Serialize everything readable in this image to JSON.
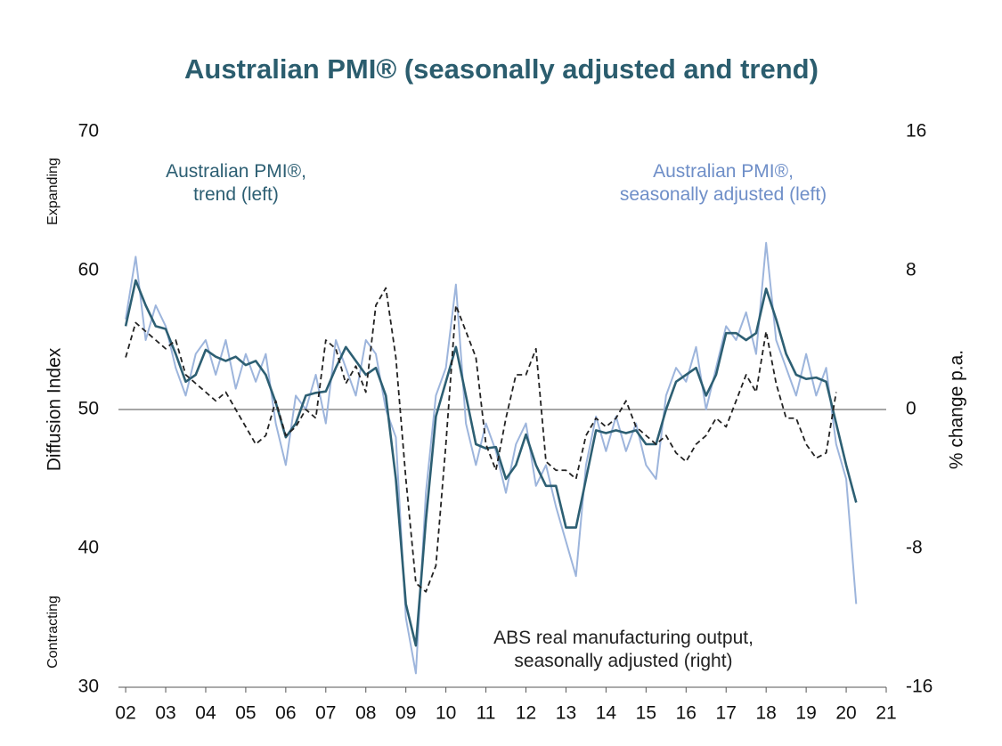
{
  "chart_data": {
    "type": "line",
    "title": "Australian PMI® (seasonally adjusted and trend)",
    "ylabel": "Diffusion Index",
    "y2label": "% change p.a.",
    "annotations": [
      "Expanding",
      "Contracting"
    ],
    "x": [
      2002,
      2002.25,
      2002.5,
      2002.75,
      2003,
      2003.25,
      2003.5,
      2003.75,
      2004,
      2004.25,
      2004.5,
      2004.75,
      2005,
      2005.25,
      2005.5,
      2005.75,
      2006,
      2006.25,
      2006.5,
      2006.75,
      2007,
      2007.25,
      2007.5,
      2007.75,
      2008,
      2008.25,
      2008.5,
      2008.75,
      2009,
      2009.25,
      2009.5,
      2009.75,
      2010,
      2010.25,
      2010.5,
      2010.75,
      2011,
      2011.25,
      2011.5,
      2011.75,
      2012,
      2012.25,
      2012.5,
      2012.75,
      2013,
      2013.25,
      2013.5,
      2013.75,
      2014,
      2014.25,
      2014.5,
      2014.75,
      2015,
      2015.25,
      2015.5,
      2015.75,
      2016,
      2016.25,
      2016.5,
      2016.75,
      2017,
      2017.25,
      2017.5,
      2017.75,
      2018,
      2018.25,
      2018.5,
      2018.75,
      2019,
      2019.25,
      2019.5,
      2019.75,
      2020,
      2020.25
    ],
    "series": [
      {
        "name": "Australian PMI®,\nseasonally adjusted (left)",
        "color": "#9db5dc",
        "width": 2,
        "axis": "y",
        "values": [
          56.5,
          61,
          55,
          57.5,
          56,
          53,
          51,
          54,
          55,
          52.5,
          55,
          51.5,
          54,
          52,
          54,
          49,
          46,
          51,
          50,
          52.5,
          49,
          55,
          53,
          51,
          55,
          54,
          50,
          48,
          35,
          31,
          44,
          51,
          53,
          59,
          49,
          46,
          49,
          47,
          44,
          47.5,
          49,
          44.5,
          46,
          43,
          40.5,
          38,
          46,
          49.5,
          47,
          49.5,
          47,
          49,
          46,
          45,
          51,
          53,
          52,
          54.5,
          50,
          53,
          56,
          55,
          57,
          54,
          62,
          55,
          53,
          51,
          54,
          51,
          53,
          47.5,
          45,
          36
        ]
      },
      {
        "name": "Australian PMI®,\ntrend (left)",
        "color": "#2d5f73",
        "width": 2.6,
        "axis": "y",
        "values": [
          56,
          59.3,
          57.5,
          56,
          55.8,
          54,
          52,
          52.5,
          54.3,
          53.8,
          53.5,
          53.8,
          53.2,
          53.5,
          52.5,
          50.5,
          48,
          49,
          51,
          51.2,
          51.3,
          53,
          54.5,
          53.5,
          52.5,
          53,
          51,
          45,
          36,
          33,
          42,
          49.5,
          52,
          54.5,
          51,
          47.5,
          47.2,
          47.3,
          45,
          46,
          48.2,
          46,
          44.5,
          44.5,
          41.5,
          41.5,
          45,
          48.5,
          48.3,
          48.5,
          48.3,
          48.5,
          47.5,
          47.5,
          50,
          52,
          52.5,
          53,
          51,
          52.5,
          55.5,
          55.5,
          55,
          55.5,
          58.7,
          56.5,
          54,
          52.5,
          52.2,
          52.3,
          52,
          49,
          46,
          43.3
        ]
      },
      {
        "name": "ABS real manufacturing output,\nseasonally adjusted (right)",
        "color": "#222222",
        "width": 1.8,
        "dashed": true,
        "axis": "y2",
        "values": [
          3,
          5,
          4.5,
          4,
          3.5,
          4,
          2,
          1.5,
          1,
          0.5,
          1,
          0,
          -1,
          -2,
          -1.5,
          0.5,
          -1.5,
          -1,
          0,
          -0.5,
          4,
          3.5,
          1.5,
          2.5,
          1,
          6,
          7,
          3,
          -4,
          -10,
          -10.5,
          -9,
          -2,
          6,
          4.5,
          3,
          -2,
          -3.5,
          -0.5,
          2,
          2,
          3.5,
          -3,
          -3.5,
          -3.5,
          -4,
          -1.5,
          -0.5,
          -1,
          -0.5,
          0.5,
          -1,
          -1.5,
          -2,
          -1.5,
          -2.5,
          -3,
          -2,
          -1.5,
          -0.5,
          -1,
          0.5,
          2,
          1,
          4.5,
          1.5,
          -0.5,
          -0.5,
          -2,
          -2.8,
          -2.5,
          1,
          null,
          null
        ]
      }
    ],
    "xlim": [
      2001.82,
      2021
    ],
    "xticks": [
      {
        "value": 2002,
        "label": "02"
      },
      {
        "value": 2003,
        "label": "03"
      },
      {
        "value": 2004,
        "label": "04"
      },
      {
        "value": 2005,
        "label": "05"
      },
      {
        "value": 2006,
        "label": "06"
      },
      {
        "value": 2007,
        "label": "07"
      },
      {
        "value": 2008,
        "label": "08"
      },
      {
        "value": 2009,
        "label": "09"
      },
      {
        "value": 2010,
        "label": "10"
      },
      {
        "value": 2011,
        "label": "11"
      },
      {
        "value": 2012,
        "label": "12"
      },
      {
        "value": 2013,
        "label": "13"
      },
      {
        "value": 2014,
        "label": "14"
      },
      {
        "value": 2015,
        "label": "15"
      },
      {
        "value": 2016,
        "label": "16"
      },
      {
        "value": 2017,
        "label": "17"
      },
      {
        "value": 2018,
        "label": "18"
      },
      {
        "value": 2019,
        "label": "19"
      },
      {
        "value": 2020,
        "label": "20"
      },
      {
        "value": 2021,
        "label": "21"
      }
    ],
    "ylim": [
      30,
      70
    ],
    "yticks": [
      30,
      40,
      50,
      60,
      70
    ],
    "y2lim": [
      -16,
      16
    ],
    "y2ticks": [
      -16,
      -8,
      0,
      8,
      16
    ],
    "reference_line": 50,
    "grid": false
  }
}
